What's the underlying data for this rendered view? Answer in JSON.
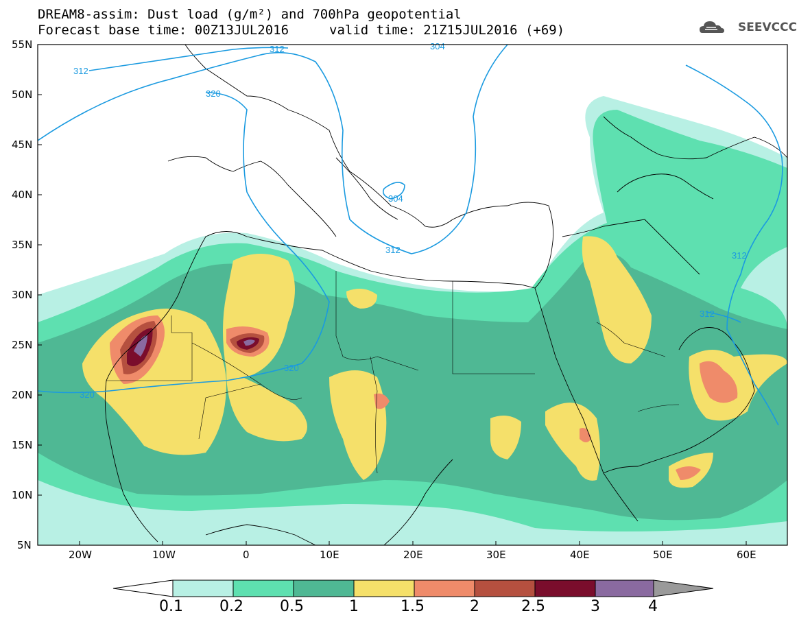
{
  "title": {
    "line1": "DREAM8-assim: Dust load (g/m²) and 700hPa geopotential",
    "line2": "Forecast base time: 00Z13JUL2016",
    "valid": "valid time: 21Z15JUL2016 (+69)"
  },
  "logo": {
    "text": "SEEVCCC",
    "icon": "cloud-logo-icon"
  },
  "axes": {
    "lat_labels": [
      "55N",
      "50N",
      "45N",
      "40N",
      "35N",
      "30N",
      "25N",
      "20N",
      "15N",
      "10N",
      "5N"
    ],
    "lon_labels": [
      "20W",
      "10W",
      "0",
      "10E",
      "20E",
      "30E",
      "40E",
      "50E",
      "60E"
    ]
  },
  "contour_labels": [
    "312",
    "304",
    "312",
    "320",
    "304",
    "312",
    "312",
    "312",
    "320",
    "320"
  ],
  "colorbar": {
    "labels": [
      "0.1",
      "0.2",
      "0.5",
      "1",
      "1.5",
      "2",
      "2.5",
      "3",
      "4"
    ],
    "colors": [
      "#ffffff",
      "#b8f0e4",
      "#5ee0b0",
      "#4fb894",
      "#f5e06a",
      "#ef8b6a",
      "#b5503f",
      "#7a0d2c",
      "#8a6aa0",
      "#9a9a9a"
    ]
  },
  "map_colors": {
    "level1": "#b8f0e4",
    "level2": "#5ee0b0",
    "level3": "#4fb894",
    "level4": "#f5e06a",
    "level5": "#ef8b6a",
    "level6": "#b5503f",
    "level7": "#7a0d2c",
    "level8": "#8a6aa0",
    "contour": "#1a9ae0"
  }
}
